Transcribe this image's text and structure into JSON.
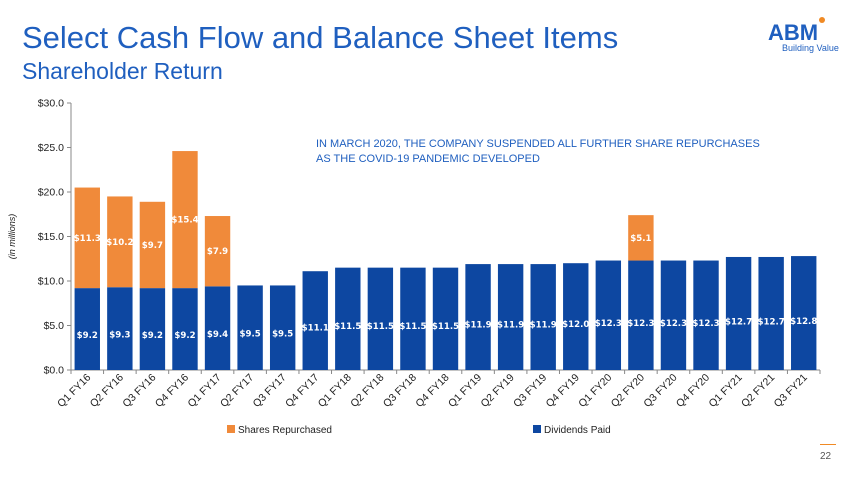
{
  "header": {
    "title": "Select Cash Flow and Balance Sheet Items",
    "subtitle": "Shareholder Return"
  },
  "logo": {
    "name": "ABM",
    "tagline": "Building Value"
  },
  "note": {
    "line1": "IN MARCH 2020, THE COMPANY SUSPENDED ALL FURTHER  SHARE REPURCHASES",
    "line2": "AS THE  COVID-19  PANDEMIC DEVELOPED"
  },
  "page_number": "22",
  "colors": {
    "title": "#1f5fbf",
    "dividends": "#0d47a1",
    "repurchases": "#f08a3a",
    "accent": "#f08a24"
  },
  "chart_data": {
    "type": "bar",
    "stacked": true,
    "categories": [
      "Q1 FY16",
      "Q2 FY16",
      "Q3 FY16",
      "Q4 FY16",
      "Q1 FY17",
      "Q2 FY17",
      "Q3 FY17",
      "Q4 FY17",
      "Q1 FY18",
      "Q2 FY18",
      "Q3 FY18",
      "Q4 FY18",
      "Q1 FY19",
      "Q2 FY19",
      "Q3 FY19",
      "Q4 FY19",
      "Q1 FY20",
      "Q2 FY20",
      "Q3 FY20",
      "Q4 FY20",
      "Q1 FY21",
      "Q2 FY21",
      "Q3 FY21"
    ],
    "series": [
      {
        "name": "Dividends Paid",
        "values": [
          9.2,
          9.3,
          9.2,
          9.2,
          9.4,
          9.5,
          9.5,
          11.1,
          11.5,
          11.5,
          11.5,
          11.5,
          11.9,
          11.9,
          11.9,
          12.0,
          12.3,
          12.3,
          12.3,
          12.3,
          12.7,
          12.7,
          12.8
        ],
        "labels": [
          "$9.2",
          "$9.3",
          "$9.2",
          "$9.2",
          "$9.4",
          "$9.5",
          "$9.5",
          "$11.1",
          "$11.5",
          "$11.5",
          "$11.5",
          "$11.5",
          "$11.9",
          "$11.9",
          "$11.9",
          "$12.0",
          "$12.3",
          "$12.3",
          "$12.3",
          "$12.3",
          "$12.7",
          "$12.7",
          "$12.8"
        ]
      },
      {
        "name": "Shares Repurchased",
        "values": [
          11.3,
          10.2,
          9.7,
          15.4,
          7.9,
          0,
          0,
          0,
          0,
          0,
          0,
          0,
          0,
          0,
          0,
          0,
          0,
          5.1,
          0,
          0,
          0,
          0,
          0
        ],
        "labels": [
          "$11.3",
          "$10.2",
          "$9.7",
          "$15.4",
          "$7.9",
          "",
          "",
          "",
          "",
          "",
          "",
          "",
          "",
          "",
          "",
          "",
          "",
          "$5.1",
          "",
          "",
          "",
          "",
          ""
        ]
      }
    ],
    "ylabel": "(in millions)",
    "ylim": [
      0,
      30
    ],
    "yticks": [
      "$0.0",
      "$5.0",
      "$10.0",
      "$15.0",
      "$20.0",
      "$25.0",
      "$30.0"
    ],
    "legend_position": "bottom",
    "grid": false
  }
}
